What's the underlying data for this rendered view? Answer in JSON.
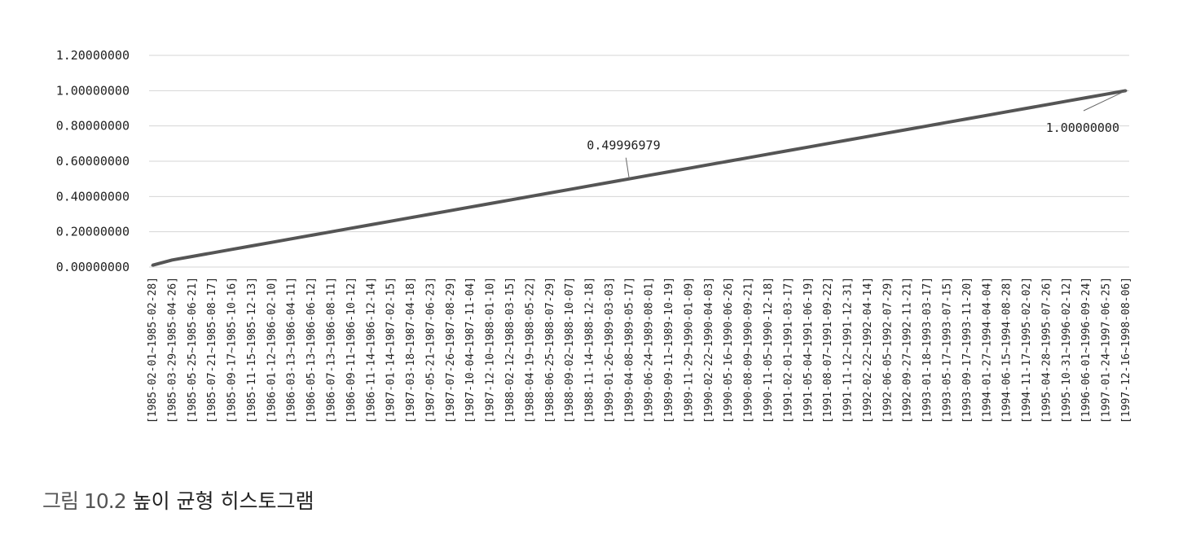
{
  "caption": {
    "label": "그림 10.2",
    "text": "높이 균형 히스토그램"
  },
  "chart_data": {
    "type": "line",
    "title": "",
    "xlabel": "",
    "ylabel": "",
    "ylim": [
      0,
      1.2
    ],
    "yticks": [
      "0.00000000",
      "0.20000000",
      "0.40000000",
      "0.60000000",
      "0.80000000",
      "1.00000000",
      "1.20000000"
    ],
    "grid": true,
    "series_color": "#555555",
    "categories": [
      "[1985-02-01~1985-02-28]",
      "[1985-03-29~1985-04-26]",
      "[1985-05-25~1985-06-21]",
      "[1985-07-21~1985-08-17]",
      "[1985-09-17~1985-10-16]",
      "[1985-11-15~1985-12-13]",
      "[1986-01-12~1986-02-10]",
      "[1986-03-13~1986-04-11]",
      "[1986-05-13~1986-06-12]",
      "[1986-07-13~1986-08-11]",
      "[1986-09-11~1986-10-12]",
      "[1986-11-14~1986-12-14]",
      "[1987-01-14~1987-02-15]",
      "[1987-03-18~1987-04-18]",
      "[1987-05-21~1987-06-23]",
      "[1987-07-26~1987-08-29]",
      "[1987-10-04~1987-11-04]",
      "[1987-12-10~1988-01-10]",
      "[1988-02-12~1988-03-15]",
      "[1988-04-19~1988-05-22]",
      "[1988-06-25~1988-07-29]",
      "[1988-09-02~1988-10-07]",
      "[1988-11-14~1988-12-18]",
      "[1989-01-26~1989-03-03]",
      "[1989-04-08~1989-05-17]",
      "[1989-06-24~1989-08-01]",
      "[1989-09-11~1989-10-19]",
      "[1989-11-29~1990-01-09]",
      "[1990-02-22~1990-04-03]",
      "[1990-05-16~1990-06-26]",
      "[1990-08-09~1990-09-21]",
      "[1990-11-05~1990-12-18]",
      "[1991-02-01~1991-03-17]",
      "[1991-05-04~1991-06-19]",
      "[1991-08-07~1991-09-22]",
      "[1991-11-12~1991-12-31]",
      "[1992-02-22~1992-04-14]",
      "[1992-06-05~1992-07-29]",
      "[1992-09-27~1992-11-21]",
      "[1993-01-18~1993-03-17]",
      "[1993-05-17~1993-07-15]",
      "[1993-09-17~1993-11-20]",
      "[1994-01-27~1994-04-04]",
      "[1994-06-15~1994-08-28]",
      "[1994-11-17~1995-02-02]",
      "[1995-04-28~1995-07-26]",
      "[1995-10-31~1996-02-12]",
      "[1996-06-01~1996-09-24]",
      "[1997-01-24~1997-06-25]",
      "[1997-12-16~1998-08-06]"
    ],
    "values": [
      0.02,
      0.04,
      0.06,
      0.08,
      0.1,
      0.12,
      0.14,
      0.16,
      0.18,
      0.2,
      0.22,
      0.24,
      0.26,
      0.28,
      0.3,
      0.32,
      0.34,
      0.36,
      0.38,
      0.4,
      0.42,
      0.44,
      0.46,
      0.48,
      0.49996979,
      0.52,
      0.54,
      0.56,
      0.58,
      0.6,
      0.62,
      0.64,
      0.66,
      0.68,
      0.7,
      0.72,
      0.74,
      0.76,
      0.78,
      0.8,
      0.82,
      0.84,
      0.86,
      0.88,
      0.9,
      0.92,
      0.94,
      0.96,
      0.98,
      1.0
    ],
    "annotations": [
      {
        "index": 24,
        "text": "0.49996979"
      },
      {
        "index": 49,
        "text": "1.00000000"
      }
    ]
  }
}
